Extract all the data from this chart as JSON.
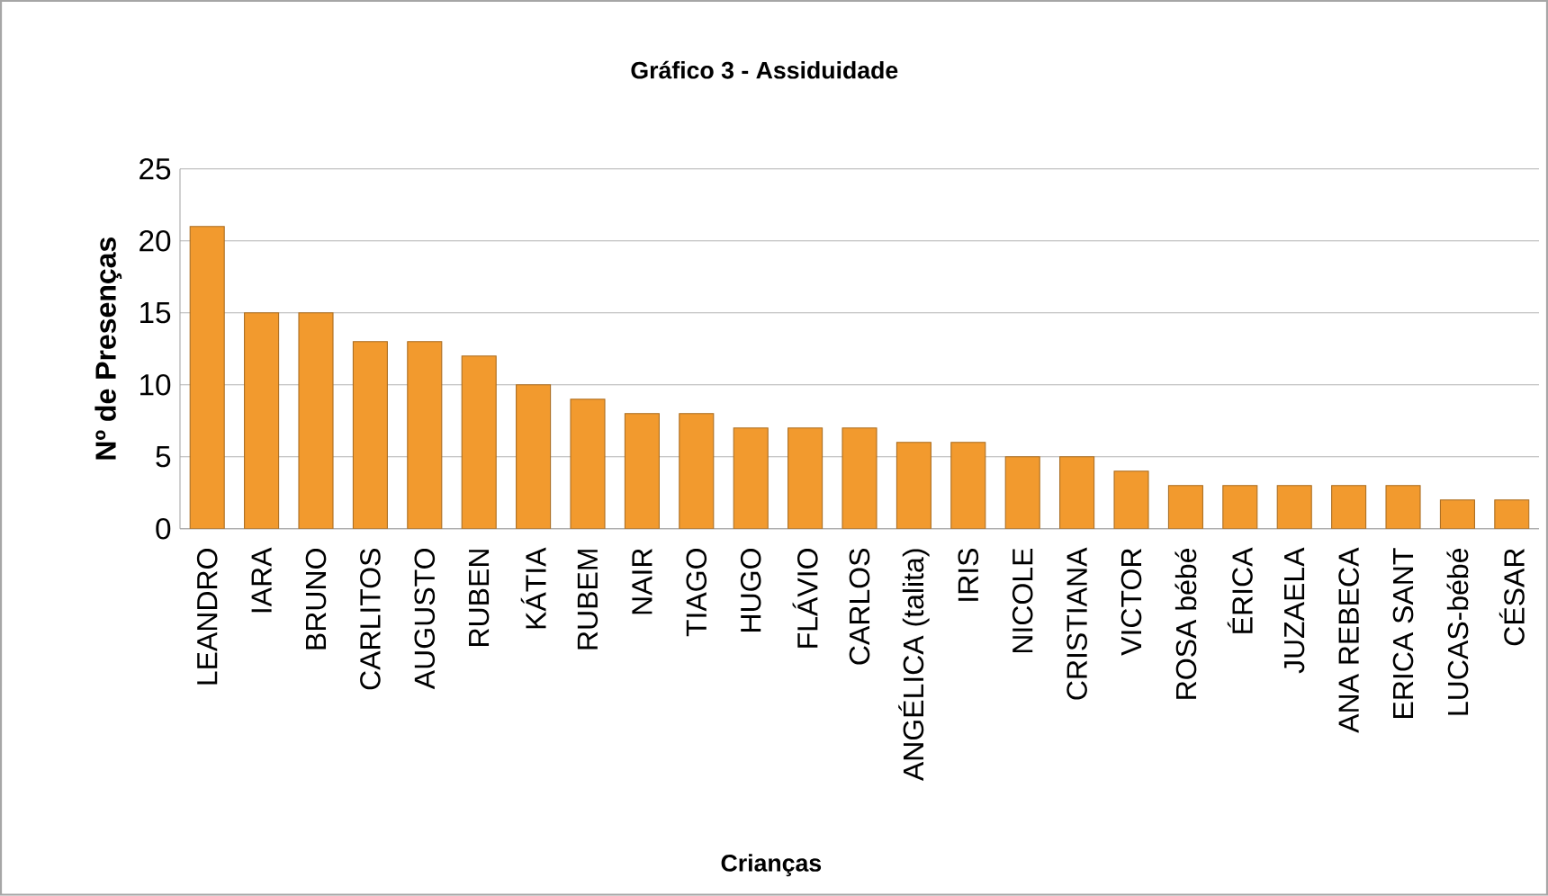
{
  "chart_data": {
    "type": "bar",
    "title": "Gráfico 3 - Assiduidade",
    "xlabel": "Crianças",
    "ylabel": "Nº de Presenças",
    "categories": [
      "LEANDRO",
      "IARA",
      "BRUNO",
      "CARLITOS",
      "AUGUSTO",
      "RUBEN",
      "KÁTIA",
      "RUBEM",
      "NAIR",
      "TIAGO",
      "HUGO",
      "FLÁVIO",
      "CARLOS",
      "ANGÉLICA (talita)",
      "IRIS",
      "NICOLE",
      "CRISTIANA",
      "VICTOR",
      "ROSA bébé",
      "ÉRICA",
      "JUZAELA",
      "ANA REBECA",
      "ERICA SANT",
      "LUCAS-bébé",
      "CÉSAR"
    ],
    "values": [
      21,
      15,
      15,
      13,
      13,
      12,
      10,
      9,
      8,
      8,
      7,
      7,
      7,
      6,
      6,
      5,
      5,
      4,
      3,
      3,
      3,
      3,
      3,
      2,
      2
    ],
    "color": "#f29a2e",
    "ylim": [
      0,
      25
    ],
    "yticks": [
      0,
      5,
      10,
      15,
      20,
      25
    ],
    "grid": "y"
  }
}
